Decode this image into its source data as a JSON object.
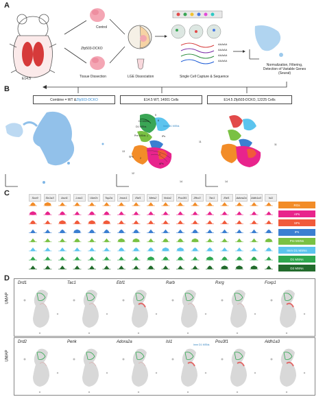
{
  "panel_a": {
    "letter": "A",
    "stage": "E14.5",
    "control": "Control",
    "mutant": "Zfp503-DCKO",
    "tissue": "Tissue Dissection",
    "lge": "LGE Dissociation",
    "capture": "Single Cell Capture & Sequence",
    "poly": "AAAAA",
    "norm_lines": [
      "Normalization, Filtering,",
      "Detection of Variable Genes",
      "(Seurat)"
    ]
  },
  "panel_b": {
    "letter": "B",
    "combine": "Combine = WT & ",
    "combine_mut": "Zfp503-DCKO",
    "wt": "E14.5 WT, 14001 Cells",
    "ko": "E14.5 Zfp503-DCKO, 12225 Cells",
    "clusters": [
      "D2 MSNs",
      "D1 MSNs",
      "Imm D1 MSNs",
      "Pre MSNs",
      "IPs",
      "APs",
      "SPs"
    ],
    "numbers": [
      "5",
      "6",
      "7",
      "13",
      "11",
      "12",
      "14",
      "2",
      "1",
      "8",
      "9"
    ]
  },
  "panel_c": {
    "letter": "C",
    "genes": [
      "Sox9",
      "Slc1a3",
      "Ascl1",
      "Lmo1",
      "Ube2c",
      "Top2a",
      "Insm1",
      "Ebf1",
      "Meis2",
      "Nr4a1",
      "Pou3f1",
      "Zfhx3",
      "Tac1",
      "Ebf1",
      "Adora2a",
      "Aldh1a3",
      "Isl1"
    ],
    "cell_types": [
      "RGs",
      "APs",
      "SPs",
      "IPs",
      "Pre MSNs",
      "Imm D1 MSNs",
      "D1 MSNs",
      "D2 MSNs"
    ],
    "colors": [
      "#f28c28",
      "#e8248c",
      "#f15a3a",
      "#3b7fd1",
      "#7ac143",
      "#5cc4ee",
      "#2fa84f",
      "#226b2c"
    ]
  },
  "panel_d": {
    "letter": "D",
    "ylabel": "UMAP",
    "row1": [
      "Drd1",
      "Tac1",
      "Ebf1",
      "Rarb",
      "Rxrg",
      "Foxp1"
    ],
    "row2": [
      "Drd2",
      "Penk",
      "Adora2a",
      "Isl1",
      "Pou3f1",
      "Aldh1a3"
    ],
    "annot": "Imm D1 MSNs"
  }
}
